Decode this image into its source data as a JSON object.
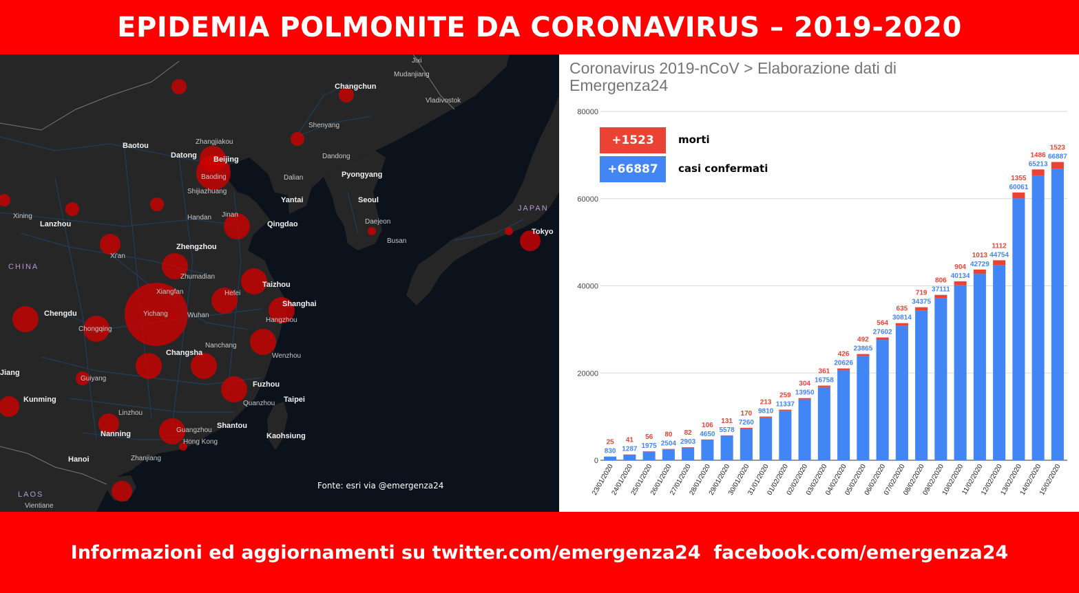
{
  "header": {
    "title": "EPIDEMIA POLMONITE DA CORONAVIRUS – 2019-2020"
  },
  "map": {
    "source": "Fonte: esri via @emergenza24",
    "countries": [
      "CHINA",
      "JAPAN",
      "LAOS"
    ],
    "cities": [
      "Baotou",
      "Datong",
      "Zhangjiakou",
      "Beijing",
      "Baoding",
      "Shijiazhuang",
      "Changchun",
      "Jixi",
      "Mudanjiang",
      "Vladivostok",
      "Shenyang",
      "Dandong",
      "Dalian",
      "Pyongyang",
      "Seoul",
      "Daejeon",
      "Busan",
      "Yantai",
      "Qingdao",
      "Jinan",
      "Handan",
      "Xining",
      "Lanzhou",
      "Xi'an",
      "Zhengzhou",
      "Zhumadian",
      "Xiangfan",
      "Yichang",
      "Wuhan",
      "Hefei",
      "Taizhou",
      "Shanghai",
      "Hangzhou",
      "Chengdu",
      "Chongqing",
      "Nanchang",
      "Changsha",
      "Wenzhou",
      "Guiyang",
      "Fuzhou",
      "Kunming",
      "Quanzhou",
      "Taipei",
      "Linzhou",
      "Nanning",
      "Guangzhou",
      "Shantou",
      "Hong Kong",
      "Kaohsiung",
      "Hanoi",
      "Zhanjiang",
      "Vientiane",
      "Tokyo",
      "Jiang"
    ],
    "colors": {
      "background": "#0b121c",
      "land": "#262626",
      "roads": "#1f3d5c",
      "circle": "#d20000"
    }
  },
  "chart": {
    "title": "Coronavirus 2019-nCoV > Elaborazione dati di Emergenza24",
    "legend": {
      "deaths_value": "+1523",
      "deaths_label": "morti",
      "cases_value": "+66887",
      "cases_label": "casi confermati"
    },
    "colors": {
      "deaths": "#ea4335",
      "cases": "#4285f4"
    }
  },
  "chart_data": {
    "type": "bar",
    "stacked": true,
    "categories": [
      "23/01/2020",
      "24/01/2020",
      "25/01/2020",
      "26/01/2020",
      "27/01/2020",
      "28/01/2020",
      "29/01/2020",
      "30/01/2020",
      "31/01/2020",
      "01/02/2020",
      "02/02/2020",
      "03/02/2020",
      "04/02/2020",
      "05/02/2020",
      "06/02/2020",
      "07/02/2020",
      "08/02/2020",
      "09/02/2020",
      "10/02/2020",
      "11/02/2020",
      "12/02/2020",
      "13/02/2020",
      "14/02/2020",
      "15/02/2020"
    ],
    "series": [
      {
        "name": "casi confermati",
        "values": [
          830,
          1287,
          1975,
          2504,
          2903,
          4650,
          5578,
          7260,
          9810,
          11337,
          13950,
          16758,
          20626,
          23865,
          27602,
          30814,
          34375,
          37111,
          40134,
          42729,
          44754,
          60061,
          65213,
          66887
        ]
      },
      {
        "name": "morti",
        "values": [
          25,
          41,
          56,
          80,
          82,
          106,
          131,
          170,
          213,
          259,
          304,
          361,
          426,
          492,
          564,
          635,
          719,
          806,
          904,
          1013,
          1112,
          1355,
          1486,
          1523
        ]
      }
    ],
    "yticks": [
      0,
      20000,
      40000,
      60000,
      80000
    ],
    "ylim": [
      0,
      80000
    ],
    "grid": true,
    "legend_position": "top-left"
  },
  "footer": {
    "text": "Informazioni ed aggiornamenti su twitter.com/emergenza24  facebook.com/emergenza24"
  }
}
